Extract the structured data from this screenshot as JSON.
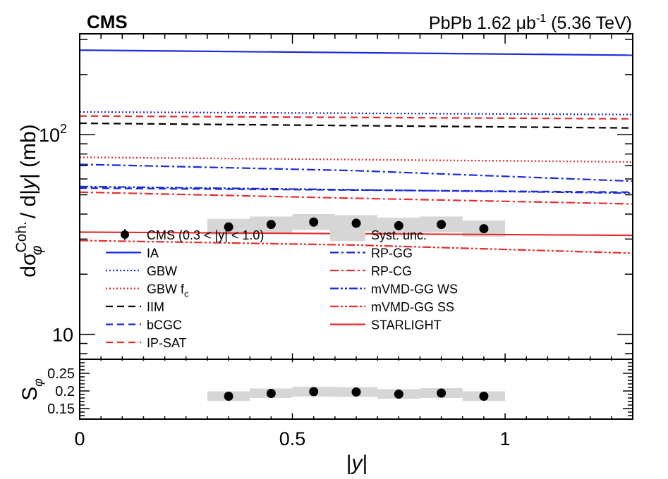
{
  "header": {
    "experiment": "CMS",
    "lumi_prefix": "PbPb 1.62 ",
    "lumi_unit": "μb",
    "lumi_exp": "-1",
    "lumi_suffix": " (5.36 TeV)"
  },
  "chart_data": [
    {
      "type": "line",
      "panel": "main",
      "xlabel": "|y|",
      "ylabel": "dσ_φ^Coh. / d|y| (mb)",
      "xlim": [
        0,
        1.3
      ],
      "ylim": [
        7.5,
        320
      ],
      "yscale": "log",
      "x_ticks": [
        0,
        0.5,
        1
      ],
      "y_tick_labels": [
        {
          "value": 10,
          "label": "10",
          "exp": ""
        },
        {
          "value": 100,
          "label": "10",
          "exp": "2"
        }
      ],
      "legend_position": "lower-left, two columns",
      "data": {
        "name": "CMS (0.3 < |y| < 1.0)",
        "x": [
          0.35,
          0.45,
          0.55,
          0.65,
          0.75,
          0.85,
          0.95
        ],
        "y": [
          34.5,
          35.5,
          36.5,
          36.0,
          35.0,
          35.5,
          33.8
        ],
        "syst_low": [
          31.5,
          32.4,
          33.3,
          32.8,
          31.9,
          32.4,
          30.8
        ],
        "syst_high": [
          37.8,
          38.9,
          40.0,
          39.5,
          38.4,
          38.9,
          37.1
        ],
        "syst_name": "Syst. unc."
      },
      "series": [
        {
          "name": "IA",
          "color": "#1a2bd9",
          "dash": "solid",
          "x": [
            0,
            1.3
          ],
          "y": [
            265,
            250
          ]
        },
        {
          "name": "GBW",
          "color": "#1a2bd9",
          "dash": "dotted",
          "x": [
            0,
            1.3
          ],
          "y": [
            130,
            126
          ]
        },
        {
          "name": "GBW f",
          "sub": "c",
          "color": "#ea2b2b",
          "dash": "dotted",
          "x": [
            0,
            1.3
          ],
          "y": [
            77,
            73
          ]
        },
        {
          "name": "IIM",
          "color": "#000000",
          "dash": "dashed",
          "x": [
            0,
            1.3
          ],
          "y": [
            114,
            108
          ]
        },
        {
          "name": "bCGC",
          "color": "#1a2bd9",
          "dash": "dashed",
          "x": [
            0,
            1.3
          ],
          "y": [
            54,
            51.5
          ]
        },
        {
          "name": "IP-SAT",
          "color": "#ea2b2b",
          "dash": "dashed",
          "x": [
            0,
            1.3
          ],
          "y": [
            124,
            120
          ]
        },
        {
          "name": "RP-GG",
          "color": "#1a2bd9",
          "dash": "dashdot",
          "x": [
            0,
            0.65,
            1.3
          ],
          "y": [
            71,
            66,
            58.5
          ]
        },
        {
          "name": "RP-CG",
          "color": "#ea2b2b",
          "dash": "dashdot",
          "x": [
            0,
            0.65,
            1.3
          ],
          "y": [
            51.5,
            48,
            45
          ]
        },
        {
          "name": "mVMD-GG WS",
          "color": "#1a2bd9",
          "dash": "dashdotdot",
          "x": [
            0,
            1.3
          ],
          "y": [
            55,
            51
          ]
        },
        {
          "name": "mVMD-GG SS",
          "color": "#ea2b2b",
          "dash": "dashdotdot",
          "x": [
            0,
            0.65,
            1.3
          ],
          "y": [
            29.5,
            28.0,
            25.5
          ]
        },
        {
          "name": "STARLIGHT",
          "color": "#ea2b2b",
          "dash": "solid",
          "x": [
            0,
            1.3
          ],
          "y": [
            32.5,
            31.3
          ]
        }
      ]
    },
    {
      "type": "scatter",
      "panel": "ratio",
      "xlabel": "|y|",
      "ylabel": "S_φ",
      "xlim": [
        0,
        1.3
      ],
      "ylim": [
        0.12,
        0.29
      ],
      "y_ticks": [
        "0.15",
        "0.2",
        "0.25"
      ],
      "x": [
        0.35,
        0.45,
        0.55,
        0.65,
        0.75,
        0.85,
        0.95
      ],
      "y": [
        0.185,
        0.193,
        0.198,
        0.197,
        0.191,
        0.194,
        0.185
      ],
      "syst_low": [
        0.172,
        0.18,
        0.184,
        0.183,
        0.178,
        0.18,
        0.172
      ],
      "syst_high": [
        0.199,
        0.207,
        0.212,
        0.211,
        0.205,
        0.208,
        0.199
      ]
    }
  ]
}
